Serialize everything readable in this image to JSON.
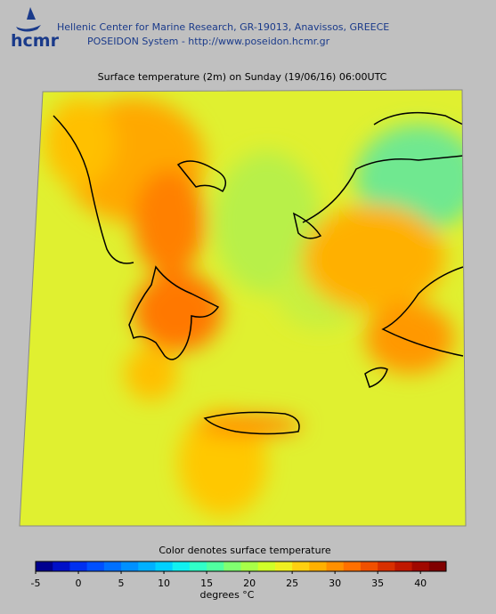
{
  "header": {
    "logo": "hcmr",
    "organization": "Hellenic Center for Marine Research, GR-19013, Anavissos, GREECE",
    "system": "POSEIDON System - http://www.poseidon.hcmr.gr"
  },
  "map": {
    "title": "Surface temperature (2m) on Sunday (19/06/16) 06:00UTC"
  },
  "colorbar": {
    "caption": "Color denotes surface temperature",
    "unit_label": "degrees °C",
    "range": [
      -5,
      43
    ],
    "ticks": [
      -5,
      0,
      5,
      10,
      15,
      20,
      25,
      30,
      35,
      40
    ],
    "colors": [
      "#00008f",
      "#0010c8",
      "#0030f0",
      "#0050ff",
      "#0070ff",
      "#0090ff",
      "#00b0ff",
      "#00d0ff",
      "#10f0f0",
      "#30ffc8",
      "#50ffa0",
      "#80ff70",
      "#a8ff48",
      "#d0ff28",
      "#f0f020",
      "#ffd010",
      "#ffb000",
      "#ff9000",
      "#ff7000",
      "#f05000",
      "#d83000",
      "#c01800",
      "#a00800",
      "#800000"
    ]
  }
}
